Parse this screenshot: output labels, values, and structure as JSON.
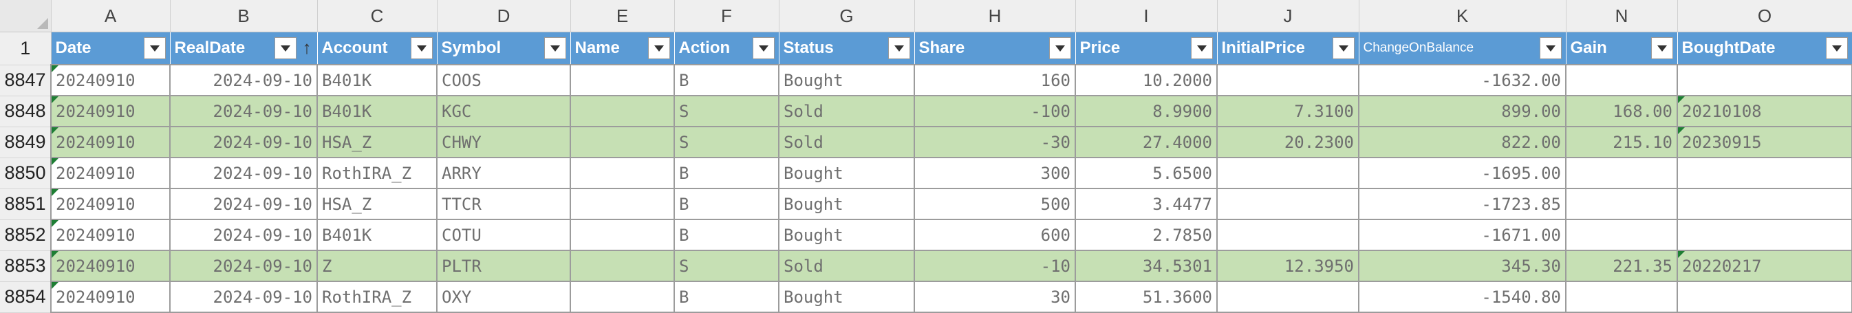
{
  "column_letters": [
    "A",
    "B",
    "C",
    "D",
    "E",
    "F",
    "G",
    "H",
    "I",
    "J",
    "K",
    "N",
    "O"
  ],
  "header_row_number": "1",
  "headers": [
    "Date",
    "RealDate",
    "Account",
    "Symbol",
    "Name",
    "Action",
    "Status",
    "Share",
    "Price",
    "InitialPrice",
    "ChangeOnBalance",
    "Gain",
    "BoughtDate"
  ],
  "rows": [
    {
      "num": "8847",
      "green": false,
      "cells": [
        "20240910",
        "2024-09-10",
        "B401K",
        "COOS",
        "",
        "B",
        "Bought",
        "160",
        "10.2000",
        "",
        "-1632.00",
        "",
        ""
      ]
    },
    {
      "num": "8848",
      "green": true,
      "cells": [
        "20240910",
        "2024-09-10",
        "B401K",
        "KGC",
        "",
        "S",
        "Sold",
        "-100",
        "8.9900",
        "7.3100",
        "899.00",
        "168.00",
        "20210108"
      ]
    },
    {
      "num": "8849",
      "green": true,
      "cells": [
        "20240910",
        "2024-09-10",
        "HSA_Z",
        "CHWY",
        "",
        "S",
        "Sold",
        "-30",
        "27.4000",
        "20.2300",
        "822.00",
        "215.10",
        "20230915"
      ]
    },
    {
      "num": "8850",
      "green": false,
      "cells": [
        "20240910",
        "2024-09-10",
        "RothIRA_Z",
        "ARRY",
        "",
        "B",
        "Bought",
        "300",
        "5.6500",
        "",
        "-1695.00",
        "",
        ""
      ]
    },
    {
      "num": "8851",
      "green": false,
      "cells": [
        "20240910",
        "2024-09-10",
        "HSA_Z",
        "TTCR",
        "",
        "B",
        "Bought",
        "500",
        "3.4477",
        "",
        "-1723.85",
        "",
        ""
      ]
    },
    {
      "num": "8852",
      "green": false,
      "cells": [
        "20240910",
        "2024-09-10",
        "B401K",
        "COTU",
        "",
        "B",
        "Bought",
        "600",
        "2.7850",
        "",
        "-1671.00",
        "",
        ""
      ]
    },
    {
      "num": "8853",
      "green": true,
      "cells": [
        "20240910",
        "2024-09-10",
        "Z",
        "PLTR",
        "",
        "S",
        "Sold",
        "-10",
        "34.5301",
        "12.3950",
        "345.30",
        "221.35",
        "20220217"
      ]
    },
    {
      "num": "8854",
      "green": false,
      "cells": [
        "20240910",
        "2024-09-10",
        "RothIRA_Z",
        "OXY",
        "",
        "B",
        "Bought",
        "30",
        "51.3600",
        "",
        "-1540.80",
        "",
        ""
      ]
    }
  ],
  "icons": {
    "filter": "filter-dropdown-icon",
    "sort": "sort-ascending-icon",
    "corner": "select-all-icon"
  },
  "colors": {
    "header_bg": "#5b9bd5",
    "green_row": "#c6e0b4",
    "grid_border": "#9c9c9c",
    "error_marker": "#1e7e34"
  }
}
